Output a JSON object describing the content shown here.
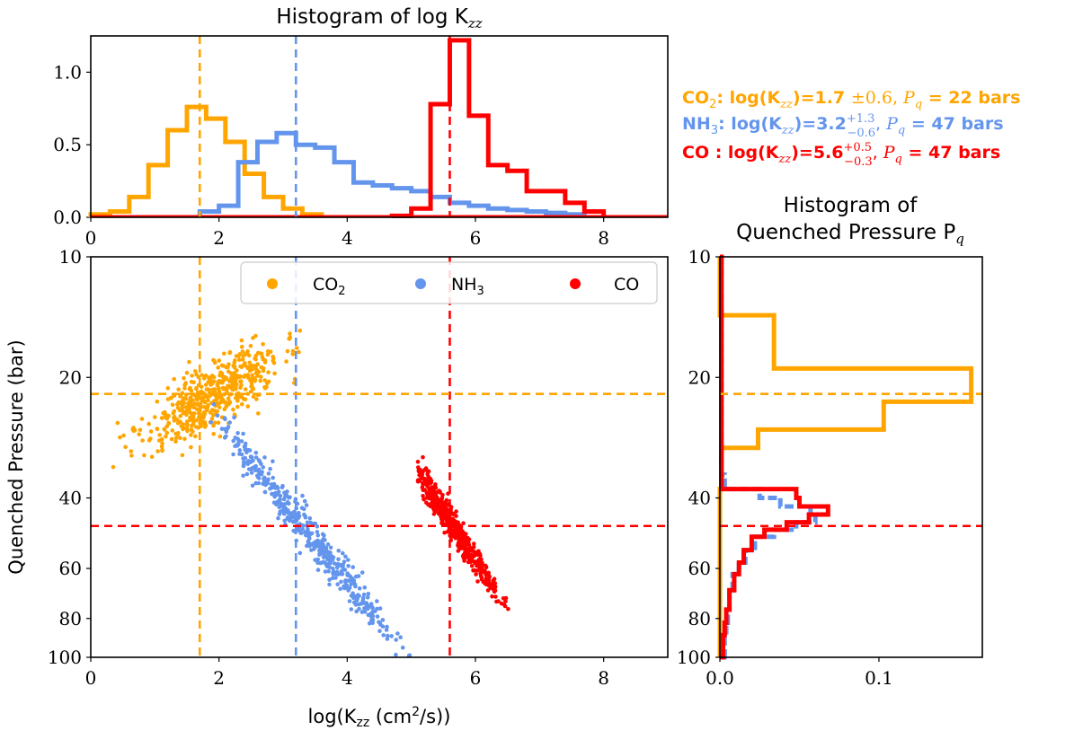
{
  "colors": {
    "CO2": "#FFA500",
    "NH3": "#6495ED",
    "CO": "#FF0000"
  },
  "annotations": {
    "co2": {
      "mol": "CO",
      "sub": "2",
      "mid": ": log(K",
      "zz": "zz",
      "val": ")=1.7 ",
      "err": "±0.6",
      "p": "P",
      "q": "q",
      "tail": " = 22 bars"
    },
    "nh3": {
      "mol": "NH",
      "sub": "3",
      "mid": ": log(K",
      "zz": "zz",
      "val": ")=3.2",
      "up": "+1.3",
      "down": "−0.6",
      "p": "P",
      "q": "q",
      "tail": " = 47 bars"
    },
    "co": {
      "mol": "CO",
      "mid": " : log(K",
      "zz": "zz",
      "val": ")=5.6",
      "up": "+0.5",
      "down": "−0.3",
      "p": "P",
      "q": "q",
      "tail": " = 47 bars"
    }
  },
  "legend": {
    "co2": {
      "text": "CO",
      "sub": "2"
    },
    "nh3": {
      "text": "NH",
      "sub": "3"
    },
    "co": {
      "text": "CO"
    }
  },
  "chart_data": [
    {
      "id": "top",
      "type": "histogram",
      "title": "Histogram of log K",
      "title_sub": "zz",
      "xlim": [
        0,
        9
      ],
      "ylim": [
        0,
        1.25
      ],
      "xticks": [
        0,
        2,
        4,
        6,
        8
      ],
      "yticks": [
        "0.0",
        "0.5",
        "1.0"
      ],
      "ytick_values": [
        0,
        0.5,
        1.0
      ],
      "bin_width": 0.3,
      "series": [
        {
          "name": "CO2",
          "edges_start": 0.0,
          "values": [
            0.02,
            0.04,
            0.14,
            0.36,
            0.6,
            0.76,
            0.68,
            0.52,
            0.3,
            0.14,
            0.06,
            0.02
          ]
        },
        {
          "name": "NH3",
          "edges_start": 1.7,
          "values": [
            0.04,
            0.08,
            0.38,
            0.52,
            0.58,
            0.5,
            0.48,
            0.38,
            0.24,
            0.22,
            0.2,
            0.18,
            0.14,
            0.1,
            0.08,
            0.06,
            0.05,
            0.04,
            0.03,
            0.02
          ]
        },
        {
          "name": "CO",
          "edges_start": 4.7,
          "values": [
            0.01,
            0.06,
            0.78,
            1.22,
            0.7,
            0.36,
            0.32,
            0.18,
            0.18,
            0.1,
            0.04
          ]
        }
      ],
      "vlines": [
        {
          "series": "CO2",
          "x": 1.7
        },
        {
          "series": "NH3",
          "x": 3.2
        },
        {
          "series": "CO",
          "x": 5.6
        }
      ]
    },
    {
      "id": "scatter",
      "type": "scatter",
      "xlabel": "log(K",
      "xlabel_sub": "zz",
      "xlabel_mid": " (cm",
      "xlabel_sup": "2",
      "xlabel_end": "/s))",
      "ylabel": "Quenched Pressure (bar)",
      "xlim": [
        0,
        9
      ],
      "ylim": [
        10,
        100
      ],
      "yscale": "log",
      "yaxis_inverted": true,
      "xticks": [
        0,
        2,
        4,
        6,
        8
      ],
      "yticks": [
        10,
        20,
        40,
        60,
        80,
        100
      ],
      "clouds": [
        {
          "series": "CO2",
          "x_mean": 1.9,
          "x_sd": 0.55,
          "logp_center": 1.35,
          "slope": -0.09,
          "logp_sd": 0.04,
          "n": 520,
          "x_min": 0.2,
          "x_max": 3.3,
          "seed": 11
        },
        {
          "series": "NH3",
          "x_mean": 3.3,
          "x_sd": 0.8,
          "logp_center": 1.67,
          "slope": 0.2,
          "logp_sd": 0.025,
          "n": 480,
          "x_min": 1.8,
          "x_max": 6.3,
          "seed": 23
        },
        {
          "series": "CO",
          "x_mean": 5.6,
          "x_sd": 0.38,
          "logp_center": 1.66,
          "slope": 0.24,
          "logp_sd": 0.02,
          "n": 520,
          "x_min": 5.1,
          "x_max": 7.0,
          "seed": 37
        }
      ],
      "vlines": [
        {
          "series": "CO2",
          "x": 1.7
        },
        {
          "series": "NH3",
          "x": 3.2
        },
        {
          "series": "CO",
          "x": 5.6
        }
      ],
      "hlines": [
        {
          "series": "CO2",
          "y": 22
        },
        {
          "series": "CO",
          "y": 47
        }
      ]
    },
    {
      "id": "right",
      "type": "histogram-horizontal",
      "title_line1": "Histogram of",
      "title_line2": "Quenched Pressure P",
      "title_sub": "q",
      "xlim": [
        0,
        0.165
      ],
      "ylim": [
        10,
        100
      ],
      "yscale": "log",
      "xticks": [
        "0.0",
        "0.1"
      ],
      "xtick_values": [
        0,
        0.1
      ],
      "yticks": [
        10,
        20,
        40,
        60,
        80,
        100
      ],
      "series": [
        {
          "name": "CO2",
          "p_edges": [
            10,
            14,
            19,
            23,
            27,
            30,
            38,
            100
          ],
          "values": [
            0.0,
            0.034,
            0.158,
            0.103,
            0.024,
            0.001,
            0.0
          ]
        },
        {
          "name": "NH3",
          "p_edges": [
            10,
            35,
            38,
            40,
            42,
            44,
            46,
            48,
            50,
            54,
            58,
            62,
            68,
            76,
            82,
            88,
            100
          ],
          "values": [
            0.001,
            0.003,
            0.025,
            0.038,
            0.057,
            0.06,
            0.048,
            0.034,
            0.022,
            0.016,
            0.012,
            0.008,
            0.006,
            0.005,
            0.004,
            0.003
          ]
        },
        {
          "name": "CO",
          "p_edges": [
            10,
            38,
            40,
            42,
            44,
            46,
            48,
            50,
            54,
            58,
            62,
            68,
            76,
            82,
            88,
            100
          ],
          "values": [
            0.001,
            0.048,
            0.05,
            0.068,
            0.056,
            0.042,
            0.028,
            0.02,
            0.015,
            0.012,
            0.009,
            0.006,
            0.004,
            0.003,
            0.002
          ]
        }
      ],
      "hlines": [
        {
          "series": "CO2",
          "y": 22
        },
        {
          "series": "CO",
          "y": 47
        }
      ]
    }
  ]
}
